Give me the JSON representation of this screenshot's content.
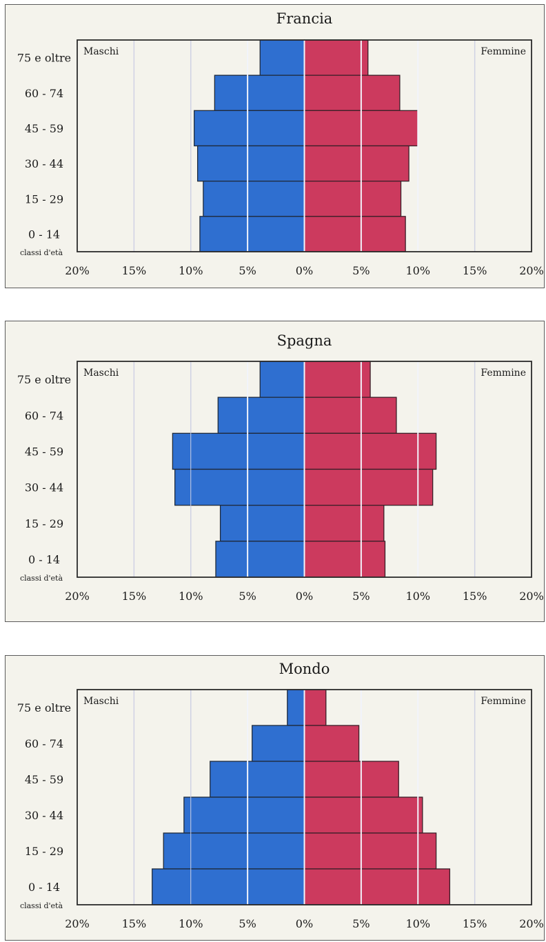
{
  "chart_data": [
    {
      "type": "bar",
      "title": "Francia",
      "categories": [
        "75 e oltre",
        "60 - 74",
        "45 - 59",
        "30 - 44",
        "15 - 29",
        "0 - 14"
      ],
      "series": [
        {
          "name": "Maschi",
          "values": [
            3.9,
            7.9,
            9.7,
            9.4,
            8.9,
            9.2
          ],
          "color": "#2f6fd0"
        },
        {
          "name": "Femmine",
          "values": [
            5.6,
            8.4,
            10.0,
            9.2,
            8.5,
            8.9
          ],
          "color": "#cc3a5e"
        }
      ],
      "xtick_labels": [
        "20%",
        "15%",
        "10%",
        "5%",
        "0%",
        "5%",
        "10%",
        "15%",
        "20%"
      ],
      "corner_label": "classi d'età",
      "xlim": [
        -20,
        20
      ]
    },
    {
      "type": "bar",
      "title": "Spagna",
      "categories": [
        "75 e oltre",
        "60 - 74",
        "45 - 59",
        "30 - 44",
        "15 - 29",
        "0 - 14"
      ],
      "series": [
        {
          "name": "Maschi",
          "values": [
            3.9,
            7.6,
            11.6,
            11.4,
            7.4,
            7.8
          ],
          "color": "#2f6fd0"
        },
        {
          "name": "Femmine",
          "values": [
            5.8,
            8.1,
            11.6,
            11.3,
            7.0,
            7.1
          ],
          "color": "#cc3a5e"
        }
      ],
      "xtick_labels": [
        "20%",
        "15%",
        "10%",
        "5%",
        "0%",
        "5%",
        "10%",
        "15%",
        "20%"
      ],
      "corner_label": "classi d'età",
      "xlim": [
        -20,
        20
      ]
    },
    {
      "type": "bar",
      "title": "Mondo",
      "categories": [
        "75 e oltre",
        "60 - 74",
        "45 - 59",
        "30 - 44",
        "15 - 29",
        "0 - 14"
      ],
      "series": [
        {
          "name": "Maschi",
          "values": [
            1.5,
            4.6,
            8.3,
            10.6,
            12.4,
            13.4
          ],
          "color": "#2f6fd0"
        },
        {
          "name": "Femmine",
          "values": [
            1.9,
            4.8,
            8.3,
            10.4,
            11.6,
            12.8
          ],
          "color": "#cc3a5e"
        }
      ],
      "xtick_labels": [
        "20%",
        "15%",
        "10%",
        "5%",
        "0%",
        "5%",
        "10%",
        "15%",
        "20%"
      ],
      "corner_label": "classi d'età",
      "xlim": [
        -20,
        20
      ]
    }
  ]
}
